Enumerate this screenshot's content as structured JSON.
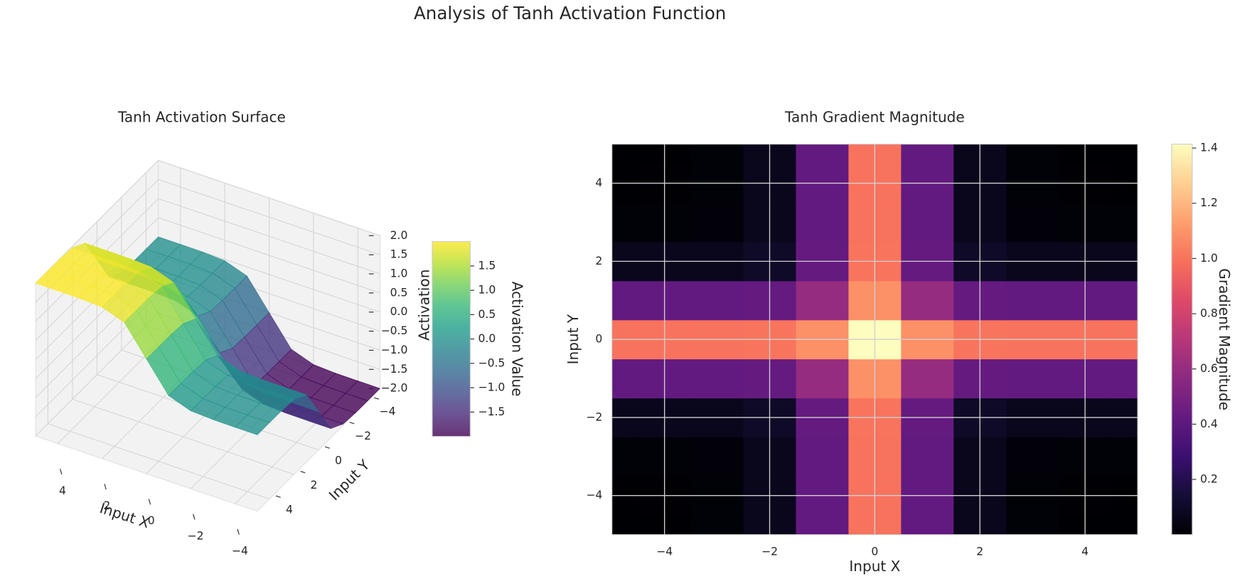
{
  "title": "Analysis of Tanh Activation Function",
  "chart_data": [
    {
      "type": "surface3d",
      "title": "Tanh Activation Surface",
      "x_label": "Input X",
      "y_label": "Input Y",
      "z_label": "Activation",
      "x": [
        -5,
        -4,
        -3,
        -2,
        -1,
        0,
        1,
        2,
        3,
        4,
        5
      ],
      "y": [
        -5,
        -4,
        -3,
        -2,
        -1,
        0,
        1,
        2,
        3,
        4,
        5
      ],
      "z": [
        [
          -2,
          -1.999,
          -1.995,
          -1.964,
          -1.762,
          -1,
          -0.238,
          -0.036,
          -0.005,
          -0.001,
          0
        ],
        [
          -1.999,
          -1.998,
          -1.994,
          -1.963,
          -1.761,
          -0.999,
          -0.237,
          -0.035,
          -0.004,
          0,
          0.001
        ],
        [
          -1.995,
          -1.994,
          -1.99,
          -1.959,
          -1.757,
          -0.995,
          -0.233,
          -0.031,
          0,
          0.004,
          0.005
        ],
        [
          -1.964,
          -1.963,
          -1.959,
          -1.928,
          -1.726,
          -0.964,
          -0.202,
          0,
          0.031,
          0.035,
          0.036
        ],
        [
          -1.762,
          -1.761,
          -1.757,
          -1.726,
          -1.524,
          -0.762,
          0,
          0.202,
          0.233,
          0.237,
          0.238
        ],
        [
          -1,
          -0.999,
          -0.995,
          -0.964,
          -0.762,
          0,
          0.762,
          0.964,
          0.995,
          0.999,
          1
        ],
        [
          -0.238,
          -0.237,
          -0.233,
          -0.202,
          0,
          0.762,
          1.524,
          1.726,
          1.757,
          1.761,
          1.762
        ],
        [
          -0.036,
          -0.035,
          -0.031,
          0,
          0.202,
          0.964,
          1.726,
          1.928,
          1.959,
          1.963,
          1.964
        ],
        [
          -0.005,
          -0.004,
          0,
          0.031,
          0.233,
          0.995,
          1.757,
          1.959,
          1.99,
          1.994,
          1.995
        ],
        [
          -0.001,
          0,
          0.004,
          0.035,
          0.237,
          0.999,
          1.761,
          1.963,
          1.994,
          1.998,
          1.999
        ],
        [
          0,
          0.001,
          0.005,
          0.036,
          0.238,
          1,
          1.762,
          1.964,
          1.995,
          1.999,
          2
        ]
      ],
      "xlim": [
        -5,
        5
      ],
      "ylim": [
        -5,
        5
      ],
      "zlim": [
        -2,
        2
      ],
      "xticks": [
        {
          "value": -4,
          "label": "−4"
        },
        {
          "value": -2,
          "label": "−2"
        },
        0,
        2,
        4
      ],
      "yticks": [
        {
          "value": -4,
          "label": "−4"
        },
        {
          "value": -2,
          "label": "−2"
        },
        0,
        2,
        4
      ],
      "zticks": [
        {
          "value": -2,
          "label": "−2.0"
        },
        {
          "value": -1.5,
          "label": "−1.5"
        },
        {
          "value": -1,
          "label": "−1.0"
        },
        {
          "value": -0.5,
          "label": "−0.5"
        },
        {
          "value": 0,
          "label": "0.0"
        },
        0.5,
        {
          "value": 1,
          "label": "1.0"
        },
        1.5,
        {
          "value": 2,
          "label": "2.0"
        }
      ],
      "colormap": "viridis",
      "alpha": 0.8,
      "colorbar": {
        "label": "Activation Value",
        "lim": [
          -2,
          2
        ],
        "ticks": [
          {
            "value": -1.5,
            "label": "−1.5"
          },
          {
            "value": -1,
            "label": "−1.0"
          },
          {
            "value": -0.5,
            "label": "−0.5"
          },
          {
            "value": 0,
            "label": "0.0"
          },
          0.5,
          {
            "value": 1,
            "label": "1.0"
          },
          1.5
        ]
      }
    },
    {
      "type": "heatmap",
      "title": "Tanh Gradient Magnitude",
      "x_label": "Input X",
      "y_label": "Input Y",
      "x": [
        -5,
        -4,
        -3,
        -2,
        -1,
        0,
        1,
        2,
        3,
        4,
        5
      ],
      "y": [
        -5,
        -4,
        -3,
        -2,
        -1,
        0,
        1,
        2,
        3,
        4,
        5
      ],
      "z": [
        [
          0,
          0.001,
          0.01,
          0.071,
          0.42,
          1,
          0.42,
          0.071,
          0.01,
          0.001,
          0
        ],
        [
          0.001,
          0.002,
          0.01,
          0.071,
          0.42,
          1,
          0.42,
          0.071,
          0.01,
          0.002,
          0.001
        ],
        [
          0.01,
          0.01,
          0.014,
          0.071,
          0.42,
          1,
          0.42,
          0.071,
          0.014,
          0.01,
          0.01
        ],
        [
          0.071,
          0.071,
          0.071,
          0.1,
          0.426,
          1.002,
          0.426,
          0.1,
          0.071,
          0.071,
          0.071
        ],
        [
          0.42,
          0.42,
          0.42,
          0.426,
          0.594,
          1.085,
          0.594,
          0.426,
          0.42,
          0.42,
          0.42
        ],
        [
          1,
          1,
          1,
          1.002,
          1.085,
          1.414,
          1.085,
          1.002,
          1,
          1,
          1
        ],
        [
          0.42,
          0.42,
          0.42,
          0.426,
          0.594,
          1.085,
          0.594,
          0.426,
          0.42,
          0.42,
          0.42
        ],
        [
          0.071,
          0.071,
          0.071,
          0.1,
          0.426,
          1.002,
          0.426,
          0.1,
          0.071,
          0.071,
          0.071
        ],
        [
          0.01,
          0.01,
          0.014,
          0.071,
          0.42,
          1,
          0.42,
          0.071,
          0.014,
          0.01,
          0.01
        ],
        [
          0.001,
          0.002,
          0.01,
          0.071,
          0.42,
          1,
          0.42,
          0.071,
          0.01,
          0.002,
          0.001
        ],
        [
          0,
          0.001,
          0.01,
          0.071,
          0.42,
          1,
          0.42,
          0.071,
          0.01,
          0.001,
          0
        ]
      ],
      "xlim": [
        -5,
        5
      ],
      "ylim": [
        -5,
        5
      ],
      "xticks": [
        {
          "value": -4,
          "label": "−4"
        },
        {
          "value": -2,
          "label": "−2"
        },
        0,
        2,
        4
      ],
      "yticks": [
        {
          "value": -4,
          "label": "−4"
        },
        {
          "value": -2,
          "label": "−2"
        },
        0,
        2,
        4
      ],
      "grid": true,
      "colormap": "magma",
      "colorbar": {
        "label": "Gradient Magnitude",
        "lim": [
          0,
          1.414
        ],
        "ticks": [
          0.2,
          0.4,
          0.6,
          0.8,
          {
            "value": 1,
            "label": "1.0"
          },
          1.2,
          1.4
        ]
      }
    }
  ]
}
